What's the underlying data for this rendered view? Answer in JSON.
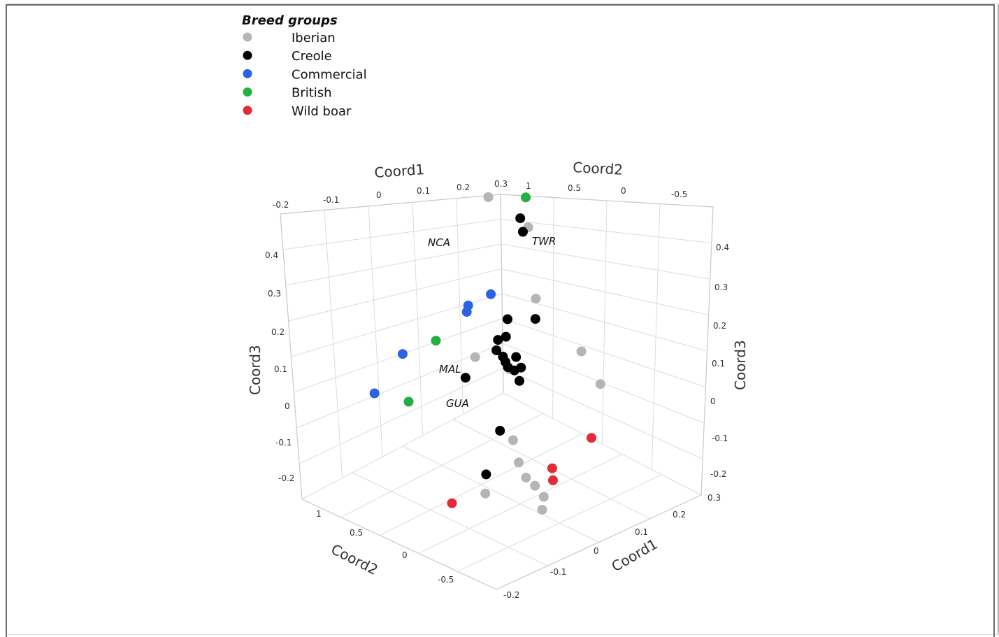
{
  "chart_data": {
    "type": "scatter",
    "projection": "3d",
    "legend": {
      "title": "Breed groups",
      "placement": "top-left",
      "entries": [
        {
          "name": "Iberian",
          "color": "#b5b5b5"
        },
        {
          "name": "Creole",
          "color": "#000000"
        },
        {
          "name": "Commercial",
          "color": "#2b63e4"
        },
        {
          "name": "British",
          "color": "#22b040"
        },
        {
          "name": "Wild boar",
          "color": "#e32a36"
        }
      ]
    },
    "axes": {
      "coord1_top": {
        "label": "Coord1",
        "ticks": [
          "-0.2",
          "-0.1",
          "0",
          "0.1",
          "0.2",
          "0.3"
        ]
      },
      "coord2_top": {
        "label": "Coord2",
        "ticks": [
          "1",
          "0.5",
          "0",
          "-0.5"
        ]
      },
      "coord3_left": {
        "label": "Coord3",
        "ticks": [
          "0.4",
          "0.3",
          "0.2",
          "0.1",
          "0",
          "-0.1",
          "-0.2"
        ]
      },
      "coord3_right": {
        "ticks": [
          "0.4",
          "0.3",
          "0.2",
          "0.1",
          "0",
          "-0.1",
          "-0.2"
        ]
      },
      "coord2_bottom": {
        "label": "Coord2",
        "ticks": [
          "1",
          "0.5",
          "0",
          "-0.5"
        ]
      },
      "coord1_bottom": {
        "label": "Coord1",
        "ticks": [
          "0.3",
          "0.2",
          "0.1",
          "0",
          "-0.1",
          "-0.2"
        ]
      }
    },
    "grid": true,
    "annotations": [
      {
        "text": "NCA",
        "near": "Iberian"
      },
      {
        "text": "TWR",
        "near": "British"
      },
      {
        "text": "MAL",
        "near": "Iberian"
      },
      {
        "text": "GUA",
        "near": "Creole"
      }
    ],
    "series": [
      {
        "name": "Iberian",
        "points": [
          {
            "coord1": 0.23,
            "coord2": 0.9,
            "coord3": 0.42
          },
          {
            "coord1": 0.28,
            "coord2": 0.75,
            "coord3": 0.32
          },
          {
            "coord1": 0.25,
            "coord2": 0.6,
            "coord3": 0.14
          },
          {
            "coord1": 0.1,
            "coord2": 0.6,
            "coord3": 0.05
          },
          {
            "coord1": 0.12,
            "coord2": 0.4,
            "coord3": 0.04
          },
          {
            "coord1": 0.2,
            "coord2": 0.1,
            "coord3": 0.11
          },
          {
            "coord1": 0.15,
            "coord2": -0.2,
            "coord3": 0.1
          },
          {
            "coord1": 0.0,
            "coord2": 0.0,
            "coord3": -0.03
          },
          {
            "coord1": -0.05,
            "coord2": -0.2,
            "coord3": -0.03
          },
          {
            "coord1": -0.08,
            "coord2": -0.35,
            "coord3": -0.03
          },
          {
            "coord1": -0.09,
            "coord2": -0.45,
            "coord3": -0.03
          },
          {
            "coord1": -0.1,
            "coord2": -0.55,
            "coord3": -0.04
          },
          {
            "coord1": -0.12,
            "coord2": -0.6,
            "coord3": -0.06
          },
          {
            "coord1": -0.1,
            "coord2": -0.1,
            "coord3": -0.12
          }
        ]
      },
      {
        "name": "Creole",
        "points": [
          {
            "coord1": 0.27,
            "coord2": 0.78,
            "coord3": 0.35
          },
          {
            "coord1": 0.27,
            "coord2": 0.76,
            "coord3": 0.31
          },
          {
            "coord1": 0.2,
            "coord2": 0.45,
            "coord3": 0.14
          },
          {
            "coord1": 0.18,
            "coord2": 0.6,
            "coord3": 0.12
          },
          {
            "coord1": 0.15,
            "coord2": 0.52,
            "coord3": 0.1
          },
          {
            "coord1": 0.14,
            "coord2": 0.55,
            "coord3": 0.09
          },
          {
            "coord1": 0.12,
            "coord2": 0.5,
            "coord3": 0.08
          },
          {
            "coord1": 0.12,
            "coord2": 0.45,
            "coord3": 0.07
          },
          {
            "coord1": 0.12,
            "coord2": 0.35,
            "coord3": 0.09
          },
          {
            "coord1": 0.11,
            "coord2": 0.4,
            "coord3": 0.07
          },
          {
            "coord1": 0.1,
            "coord2": 0.35,
            "coord3": 0.07
          },
          {
            "coord1": 0.1,
            "coord2": 0.25,
            "coord3": 0.09
          },
          {
            "coord1": 0.1,
            "coord2": 0.3,
            "coord3": 0.07
          },
          {
            "coord1": 0.08,
            "coord2": 0.2,
            "coord3": 0.07
          },
          {
            "coord1": 0.06,
            "coord2": 0.55,
            "coord3": 0.02
          },
          {
            "coord1": 0.0,
            "coord2": 0.1,
            "coord3": -0.02
          },
          {
            "coord1": -0.05,
            "coord2": 0.05,
            "coord3": -0.12
          }
        ]
      },
      {
        "name": "Commercial",
        "points": [
          {
            "coord1": 0.22,
            "coord2": 0.85,
            "coord3": 0.12
          },
          {
            "coord1": 0.18,
            "coord2": 0.9,
            "coord3": 0.1
          },
          {
            "coord1": 0.17,
            "coord2": 0.88,
            "coord3": 0.09
          },
          {
            "coord1": 0.05,
            "coord2": 1.0,
            "coord3": 0.01
          },
          {
            "coord1": -0.02,
            "coord2": 1.0,
            "coord3": -0.07
          }
        ]
      },
      {
        "name": "British",
        "points": [
          {
            "coord1": 0.29,
            "coord2": 0.8,
            "coord3": 0.4
          },
          {
            "coord1": 0.1,
            "coord2": 0.9,
            "coord3": 0.04
          },
          {
            "coord1": 0.0,
            "coord2": 0.8,
            "coord3": -0.07
          }
        ]
      },
      {
        "name": "Wild boar",
        "points": [
          {
            "coord1": 0.08,
            "coord2": -0.35,
            "coord3": 0.0
          },
          {
            "coord1": 0.0,
            "coord2": -0.3,
            "coord3": -0.06
          },
          {
            "coord1": -0.03,
            "coord2": -0.4,
            "coord3": -0.06
          },
          {
            "coord1": -0.15,
            "coord2": 0.0,
            "coord3": -0.14
          }
        ]
      }
    ]
  }
}
